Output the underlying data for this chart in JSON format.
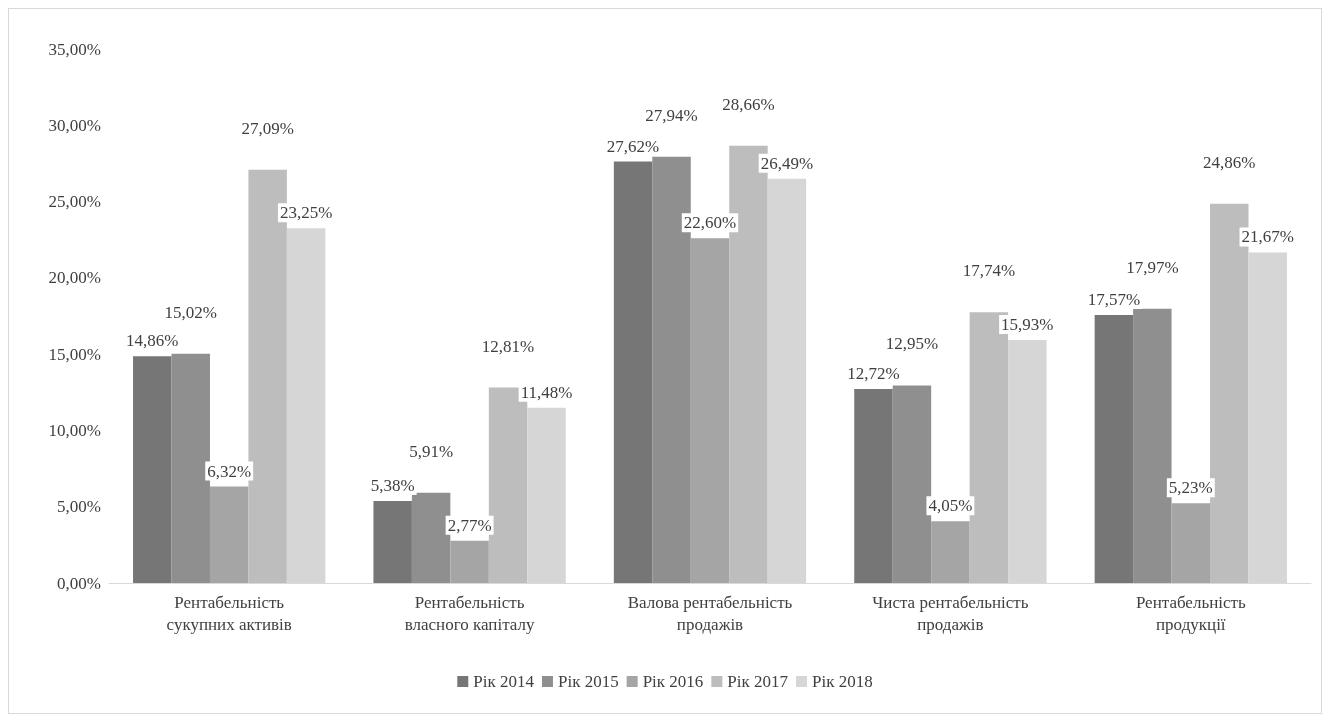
{
  "chart_data": {
    "type": "bar",
    "categories": [
      "Рентабельність сукупних активів",
      "Рентабельність власного капіталу",
      "Валова рентабельність продажів",
      "Чиста рентабельність продажів",
      "Рентабельність продукції"
    ],
    "series": [
      {
        "name": "Рік 2014",
        "color": "#767676",
        "values": [
          14.86,
          5.38,
          27.62,
          12.72,
          17.57
        ],
        "value_labels": [
          "14,86%",
          "5,38%",
          "27,62%",
          "12,72%",
          "17,57%"
        ]
      },
      {
        "name": "Рік 2015",
        "color": "#8f8f8f",
        "values": [
          15.02,
          5.91,
          27.94,
          12.95,
          17.97
        ],
        "value_labels": [
          "15,02%",
          "5,91%",
          "27,94%",
          "12,95%",
          "17,97%"
        ]
      },
      {
        "name": "Рік 2016",
        "color": "#a5a5a5",
        "values": [
          6.32,
          2.77,
          22.6,
          4.05,
          5.23
        ],
        "value_labels": [
          "6,32%",
          "2,77%",
          "22,60%",
          "4,05%",
          "5,23%"
        ]
      },
      {
        "name": "Рік 2017",
        "color": "#bdbdbd",
        "values": [
          27.09,
          12.81,
          28.66,
          17.74,
          24.86
        ],
        "value_labels": [
          "27,09%",
          "12,81%",
          "28,66%",
          "17,74%",
          "24,86%"
        ]
      },
      {
        "name": "Рік 2018",
        "color": "#d6d6d6",
        "values": [
          23.25,
          11.48,
          26.49,
          15.93,
          21.67
        ],
        "value_labels": [
          "23,25%",
          "11,48%",
          "26,49%",
          "15,93%",
          "21,67%"
        ]
      }
    ],
    "ylim": [
      0,
      35
    ],
    "yticks": [
      {
        "value": 0,
        "label": "0,00%"
      },
      {
        "value": 5,
        "label": "5,00%"
      },
      {
        "value": 10,
        "label": "10,00%"
      },
      {
        "value": 15,
        "label": "15,00%"
      },
      {
        "value": 20,
        "label": "20,00%"
      },
      {
        "value": 25,
        "label": "25,00%"
      },
      {
        "value": 30,
        "label": "30,00%"
      },
      {
        "value": 35,
        "label": "35,00%"
      }
    ],
    "grid": false,
    "legend": "bottom"
  }
}
